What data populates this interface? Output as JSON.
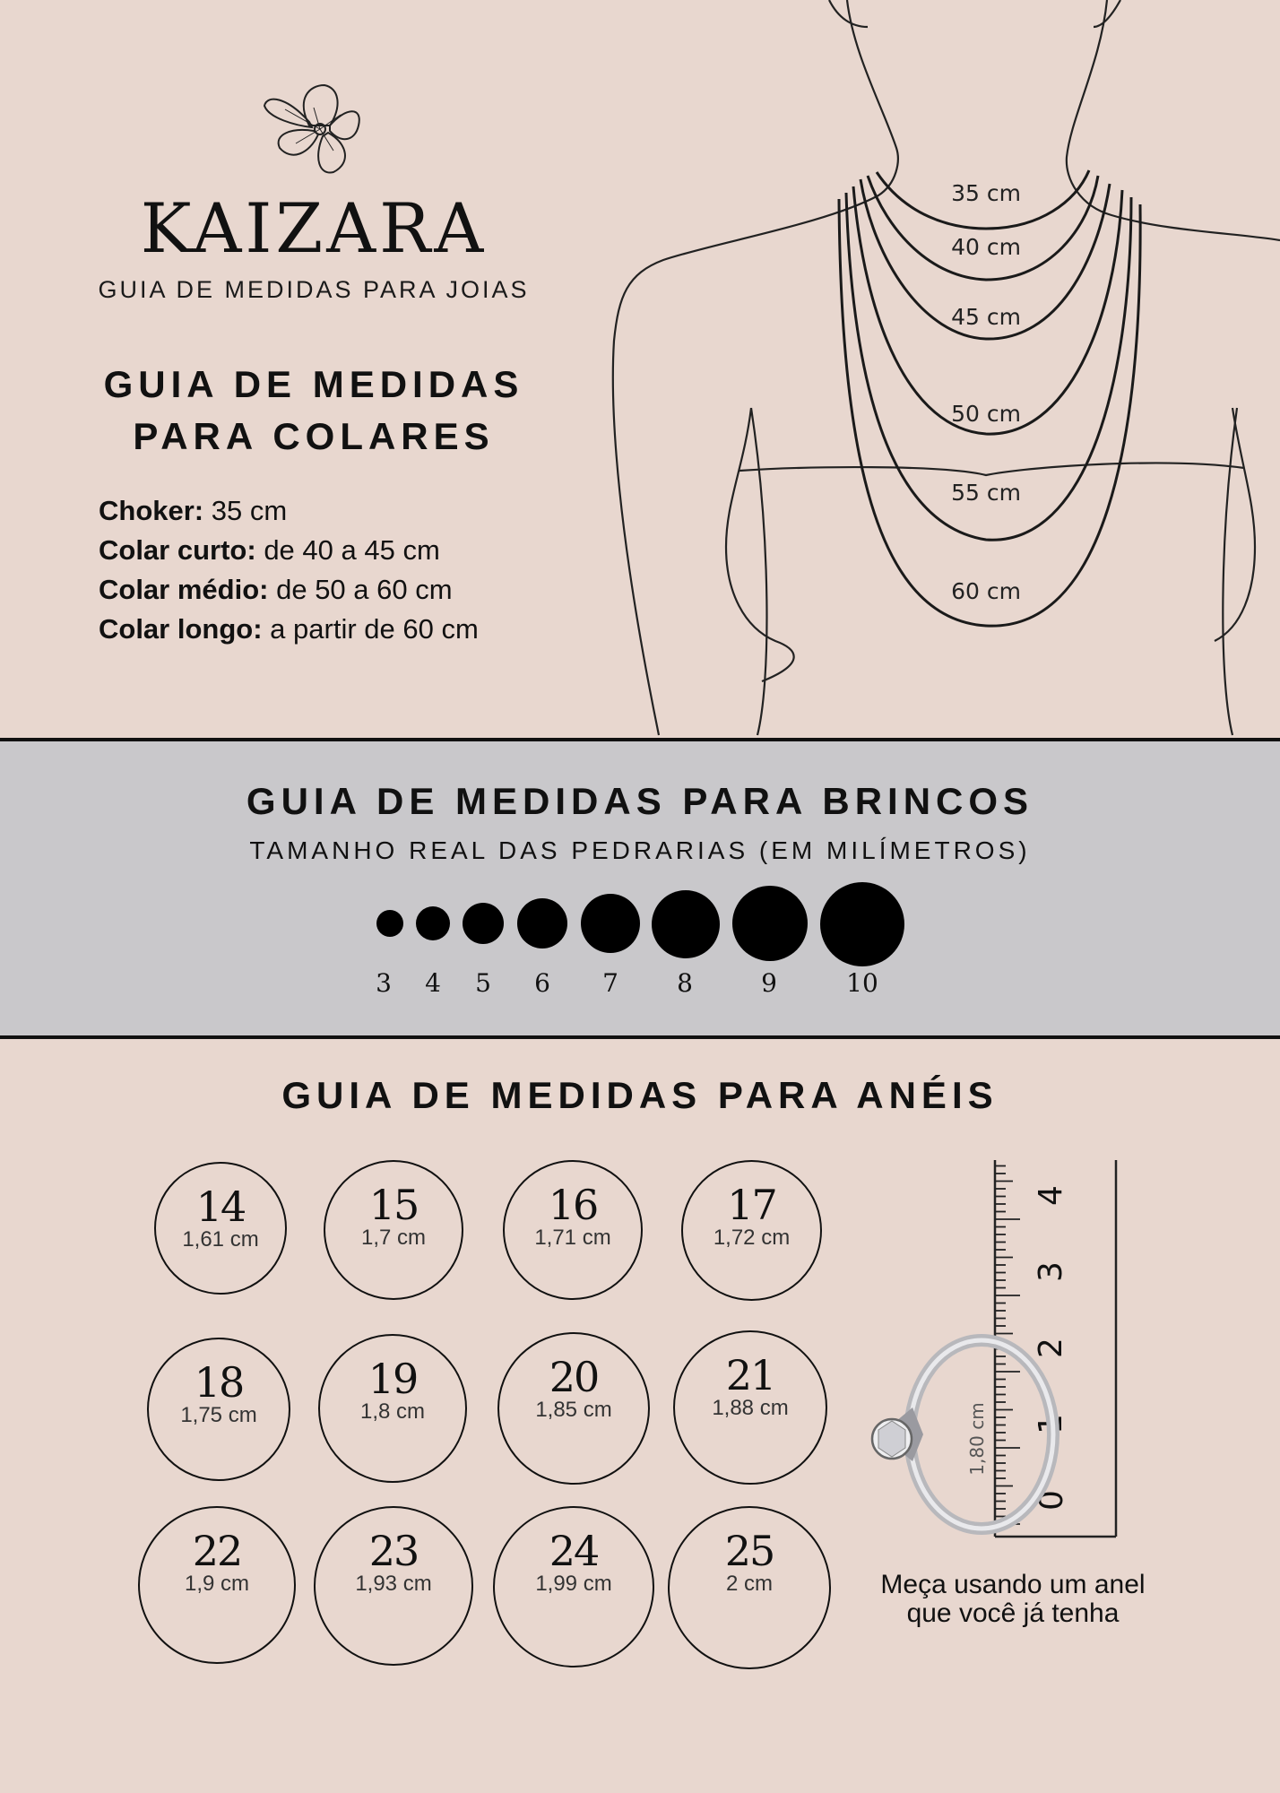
{
  "brand": {
    "name": "KAIZARA",
    "subtitle": "GUIA DE MEDIDAS PARA JOIAS"
  },
  "necklaces": {
    "title_line1": "GUIA DE MEDIDAS",
    "title_line2": "PARA COLARES",
    "items": [
      {
        "label": "Choker:",
        "value": "35 cm"
      },
      {
        "label": "Colar curto:",
        "value": "de 40 a 45 cm"
      },
      {
        "label": "Colar médio:",
        "value": "de 50 a 60 cm"
      },
      {
        "label": "Colar longo:",
        "value": "a partir de 60 cm"
      }
    ],
    "diagram_labels": [
      "35 cm",
      "40 cm",
      "45 cm",
      "50 cm",
      "55 cm",
      "60 cm"
    ]
  },
  "earrings": {
    "title": "GUIA DE MEDIDAS PARA BRINCOS",
    "subtitle": "TAMANHO REAL DAS PEDRARIAS (EM MILÍMETROS)",
    "sizes": [
      "3",
      "4",
      "5",
      "6",
      "7",
      "8",
      "9",
      "10"
    ]
  },
  "rings": {
    "title": "GUIA DE MEDIDAS PARA ANÉIS",
    "sizes": [
      {
        "num": "14",
        "diameter": "1,61 cm"
      },
      {
        "num": "15",
        "diameter": "1,7 cm"
      },
      {
        "num": "16",
        "diameter": "1,71 cm"
      },
      {
        "num": "17",
        "diameter": "1,72 cm"
      },
      {
        "num": "18",
        "diameter": "1,75 cm"
      },
      {
        "num": "19",
        "diameter": "1,8 cm"
      },
      {
        "num": "20",
        "diameter": "1,85 cm"
      },
      {
        "num": "21",
        "diameter": "1,88 cm"
      },
      {
        "num": "22",
        "diameter": "1,9 cm"
      },
      {
        "num": "23",
        "diameter": "1,93 cm"
      },
      {
        "num": "24",
        "diameter": "1,99 cm"
      },
      {
        "num": "25",
        "diameter": "2 cm"
      }
    ],
    "ruler_numbers": [
      "0",
      "1",
      "2",
      "3",
      "4"
    ],
    "ring_label": "1,80 cm",
    "measure_line1": "Meça usando um anel",
    "measure_line2": "que você já tenha"
  },
  "icons": {
    "logo": "flower-icon",
    "earring": "stud-earring-icon",
    "ring": "solitaire-ring-icon"
  }
}
